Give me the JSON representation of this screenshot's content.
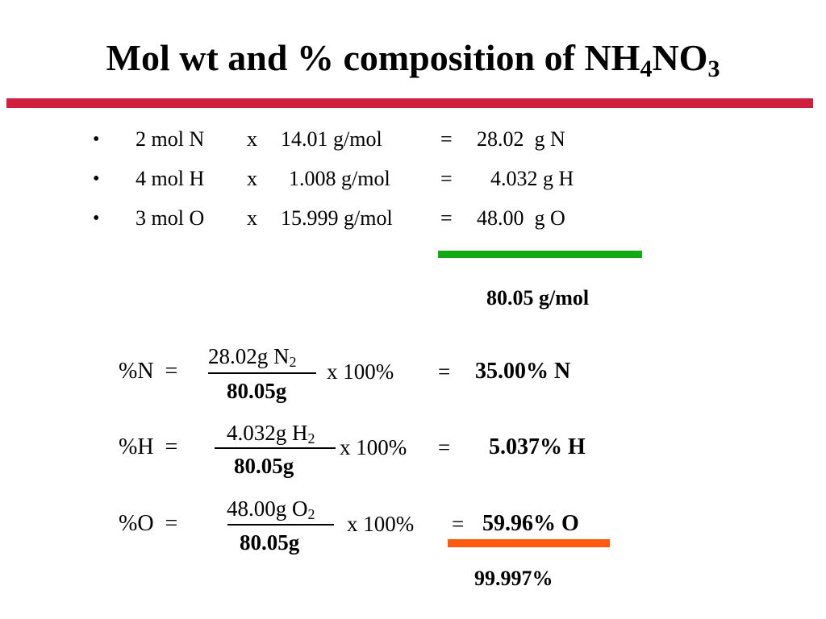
{
  "title": {
    "main": "Mol wt and % composition of NH",
    "sub1": "4",
    "mid": "NO",
    "sub2": "3"
  },
  "colors": {
    "title_rule": "#d01f3c",
    "sum_rule_mass": "#11aa11",
    "sum_rule_percent": "#ff5a10"
  },
  "bullet_symbol": "•",
  "mass_rows": [
    {
      "moles": "2 mol N",
      "times": "x",
      "molar_mass": "14.01 g/mol",
      "equals": "=",
      "mass": "28.02  g N"
    },
    {
      "moles": "4 mol H",
      "times": "x",
      "molar_mass": "1.008 g/mol",
      "equals": "=",
      "mass": "4.032 g H"
    },
    {
      "moles": "3 mol O",
      "times": "x",
      "molar_mass": "15.999 g/mol",
      "equals": "=",
      "mass": "48.00  g O"
    }
  ],
  "molar_mass_total": "80.05 g/mol",
  "percent_rows": [
    {
      "label": "%N  =",
      "numerator": "28.02g N",
      "num_sub": "2",
      "denominator": "80.05g",
      "multiplier": "x 100%",
      "equals": "=",
      "result": "35.00% N"
    },
    {
      "label": "%H  =",
      "numerator": "4.032g H",
      "num_sub": "2",
      "denominator": "80.05g",
      "multiplier": "x 100%",
      "equals": "=",
      "result": "5.037% H"
    },
    {
      "label": "%O  =",
      "numerator": "48.00g O",
      "num_sub": "2",
      "denominator": "80.05g",
      "multiplier": "x 100%",
      "equals": "=",
      "result": "59.96% O"
    }
  ],
  "percent_total": "99.997%"
}
